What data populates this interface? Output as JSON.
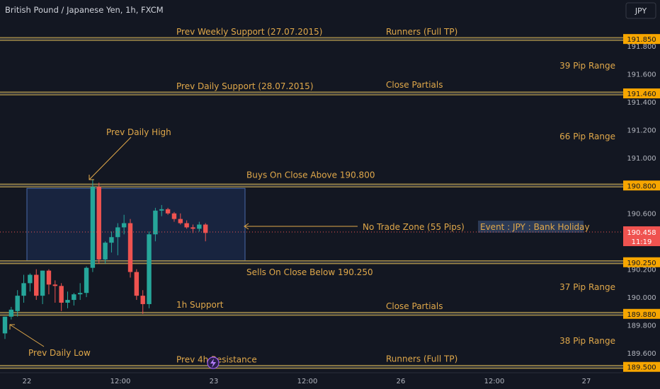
{
  "header": {
    "title": "British Pound / Japanese Yen, 1h, FXCM",
    "currency_button": "JPY"
  },
  "colors": {
    "background": "#131722",
    "up": "#26a69a",
    "down": "#ef5350",
    "level_line": "#c9a94e",
    "annotation_text": "#e0a84a",
    "price_pill": "#f7a600",
    "current_pill": "#ef5350",
    "zone_fill": "#1b2a4a",
    "zone_border": "#4a6aa8"
  },
  "chart_data": {
    "type": "candlestick",
    "symbol": "British Pound / Japanese Yen",
    "timeframe": "1h",
    "source": "FXCM",
    "ylim": [
      189.4,
      191.95
    ],
    "x_ticks": [
      "22",
      "12:00",
      "23",
      "12:00",
      "26",
      "12:00",
      "27"
    ],
    "y_ticks": [
      "191.800",
      "191.600",
      "191.400",
      "191.200",
      "191.000",
      "190.600",
      "190.200",
      "190.000",
      "189.800",
      "189.600"
    ],
    "current_price": "190.458",
    "countdown": "11:19",
    "candles": [
      {
        "o": 189.74,
        "h": 189.86,
        "l": 189.7,
        "c": 189.86
      },
      {
        "o": 189.86,
        "h": 189.93,
        "l": 189.84,
        "c": 189.91
      },
      {
        "o": 189.9,
        "h": 190.05,
        "l": 189.86,
        "c": 190.01
      },
      {
        "o": 190.01,
        "h": 190.16,
        "l": 189.96,
        "c": 190.1
      },
      {
        "o": 190.1,
        "h": 190.17,
        "l": 190.04,
        "c": 190.16
      },
      {
        "o": 190.16,
        "h": 190.2,
        "l": 189.98,
        "c": 190.01
      },
      {
        "o": 190.01,
        "h": 190.19,
        "l": 189.95,
        "c": 190.19
      },
      {
        "o": 190.19,
        "h": 190.2,
        "l": 190.02,
        "c": 190.09
      },
      {
        "o": 190.09,
        "h": 190.12,
        "l": 189.96,
        "c": 190.08
      },
      {
        "o": 190.08,
        "h": 190.1,
        "l": 189.9,
        "c": 189.96
      },
      {
        "o": 189.96,
        "h": 190.04,
        "l": 189.92,
        "c": 189.98
      },
      {
        "o": 189.98,
        "h": 190.03,
        "l": 189.94,
        "c": 190.02
      },
      {
        "o": 190.02,
        "h": 190.1,
        "l": 189.98,
        "c": 190.03
      },
      {
        "o": 190.03,
        "h": 190.22,
        "l": 190.0,
        "c": 190.21
      },
      {
        "o": 190.21,
        "h": 190.84,
        "l": 190.18,
        "c": 190.79
      },
      {
        "o": 190.79,
        "h": 190.82,
        "l": 190.24,
        "c": 190.27
      },
      {
        "o": 190.27,
        "h": 190.4,
        "l": 190.24,
        "c": 190.39
      },
      {
        "o": 190.39,
        "h": 190.47,
        "l": 190.32,
        "c": 190.43
      },
      {
        "o": 190.43,
        "h": 190.53,
        "l": 190.3,
        "c": 190.5
      },
      {
        "o": 190.5,
        "h": 190.59,
        "l": 190.45,
        "c": 190.53
      },
      {
        "o": 190.53,
        "h": 190.56,
        "l": 190.14,
        "c": 190.18
      },
      {
        "o": 190.18,
        "h": 190.2,
        "l": 189.98,
        "c": 190.01
      },
      {
        "o": 190.01,
        "h": 190.05,
        "l": 189.88,
        "c": 189.95
      },
      {
        "o": 189.95,
        "h": 190.47,
        "l": 189.92,
        "c": 190.45
      },
      {
        "o": 190.45,
        "h": 190.64,
        "l": 190.4,
        "c": 190.62
      },
      {
        "o": 190.62,
        "h": 190.66,
        "l": 190.58,
        "c": 190.63
      },
      {
        "o": 190.63,
        "h": 190.64,
        "l": 190.59,
        "c": 190.6
      },
      {
        "o": 190.6,
        "h": 190.61,
        "l": 190.54,
        "c": 190.56
      },
      {
        "o": 190.56,
        "h": 190.6,
        "l": 190.52,
        "c": 190.53
      },
      {
        "o": 190.53,
        "h": 190.55,
        "l": 190.49,
        "c": 190.5
      },
      {
        "o": 190.5,
        "h": 190.52,
        "l": 190.46,
        "c": 190.49
      },
      {
        "o": 190.49,
        "h": 190.54,
        "l": 190.47,
        "c": 190.52
      },
      {
        "o": 190.52,
        "h": 190.53,
        "l": 190.4,
        "c": 190.46
      }
    ],
    "levels": [
      {
        "price": 191.85,
        "pill": "191.850",
        "labels": [
          "Prev Weekly Support (27.07.2015)",
          "Runners (Full TP)"
        ]
      },
      {
        "price": 191.46,
        "pill": "191.460",
        "labels": [
          "Prev Daily Support (28.07.2015)",
          "Close Partials"
        ]
      },
      {
        "price": 190.8,
        "pill": "190.800",
        "labels": [
          "Buys On Close Above 190.800"
        ]
      },
      {
        "price": 190.25,
        "pill": "190.250",
        "labels": [
          "Sells On Close Below 190.250"
        ]
      },
      {
        "price": 189.88,
        "pill": "189.880",
        "labels": [
          "1h Support",
          "Close Partials"
        ]
      },
      {
        "price": 189.5,
        "pill": "189.500",
        "labels": [
          "Prev 4h Resistance",
          "Runners (Full TP)"
        ]
      }
    ],
    "range_labels": [
      "39 Pip Range",
      "66 Pip Range",
      "37 Pip Range",
      "38 Pip Range"
    ],
    "annotations": {
      "prev_daily_high": "Prev Daily High",
      "prev_daily_low": "Prev Daily Low",
      "no_trade_zone": "No Trade Zone (55 Pips)",
      "event": "Event : JPY : Bank Holiday"
    },
    "zone": {
      "top": 190.78,
      "bottom": 190.26
    }
  }
}
